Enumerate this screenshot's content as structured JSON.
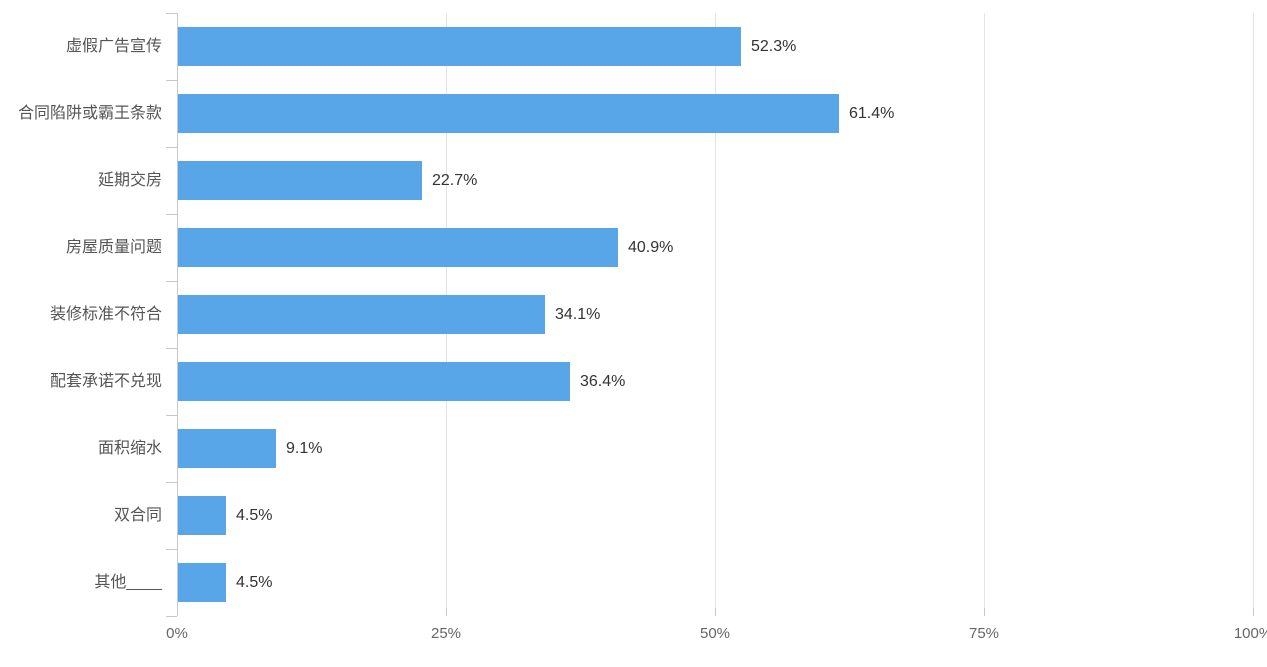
{
  "chart_data": {
    "type": "bar",
    "orientation": "horizontal",
    "title": "",
    "xlabel": "",
    "ylabel": "",
    "categories": [
      "虚假广告宣传",
      "合同陷阱或霸王条款",
      "延期交房",
      "房屋质量问题",
      "装修标准不符合",
      "配套承诺不兑现",
      "面积缩水",
      "双合同",
      "其他____"
    ],
    "values": [
      52.3,
      61.4,
      22.7,
      40.9,
      34.1,
      36.4,
      9.1,
      4.5,
      4.5
    ],
    "value_labels": [
      "52.3%",
      "61.4%",
      "22.7%",
      "40.9%",
      "34.1%",
      "36.4%",
      "9.1%",
      "4.5%",
      "4.5%"
    ],
    "x_ticks": [
      {
        "value": 0,
        "label": "0%"
      },
      {
        "value": 25,
        "label": "25%"
      },
      {
        "value": 50,
        "label": "50%"
      },
      {
        "value": 75,
        "label": "75%"
      },
      {
        "value": 100,
        "label": "100%"
      }
    ],
    "xlim": [
      0,
      100
    ],
    "grid": true,
    "legend": "none",
    "colors": {
      "bar": "#58a6e8",
      "grid": "#e4e4e4",
      "axis": "#c9c9c9",
      "tick": "#c9c9c9",
      "category_label": "#555555",
      "value_label": "#333333",
      "axis_tick_label": "#666666",
      "background": "#ffffff"
    }
  }
}
